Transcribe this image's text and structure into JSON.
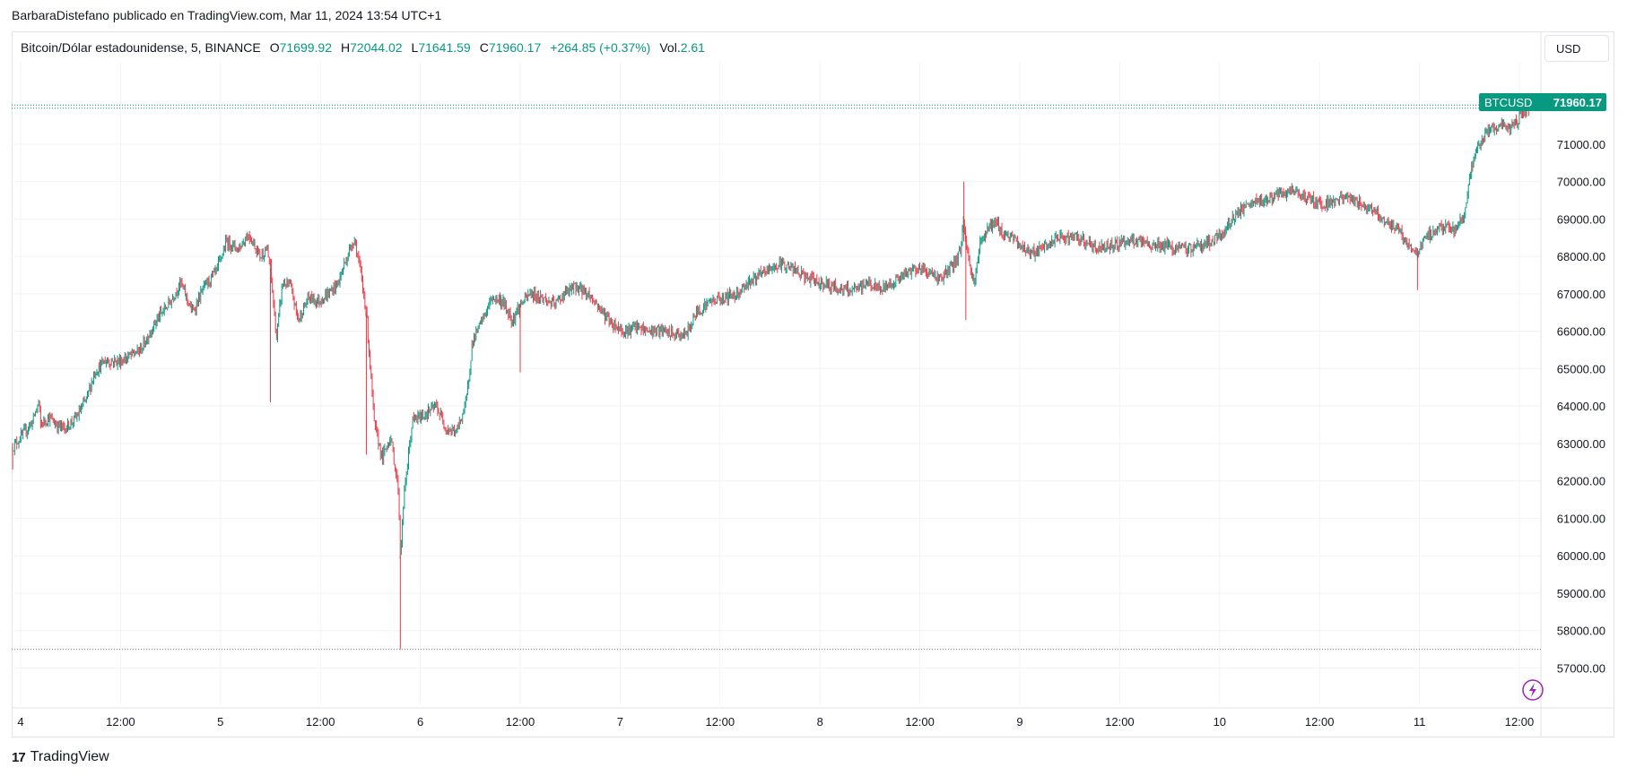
{
  "header": {
    "attribution": "BarbaraDistefano publicado en TradingView.com, Mar 11, 2024 13:54 UTC+1"
  },
  "legend": {
    "symbol": "Bitcoin/Dólar estadounidense, 5, BINANCE",
    "open_label": "O",
    "open": "71699.92",
    "high_label": "H",
    "high": "72044.02",
    "low_label": "L",
    "low": "71641.59",
    "close_label": "C",
    "close": "71960.17",
    "change": "+264.85 (+0.37%)",
    "vol_label": "Vol.",
    "vol": "2.61"
  },
  "currency_button": {
    "label": "USD"
  },
  "price_tag": {
    "ticker": "BTCUSD",
    "price": "71960.17"
  },
  "footer": {
    "brand": "TradingView",
    "logo": "TV-logo-icon"
  },
  "colors": {
    "up": "#089981",
    "down": "#f23645",
    "grid": "#f0f3fa",
    "text": "#131722"
  },
  "chart_data": {
    "type": "line",
    "title": "",
    "xlabel": "",
    "ylabel": "",
    "ylim": [
      56000,
      72300
    ],
    "xlim": [
      0,
      7.66
    ],
    "grid": true,
    "y_ticks": [
      "57000.00",
      "58000.00",
      "59000.00",
      "60000.00",
      "61000.00",
      "62000.00",
      "63000.00",
      "64000.00",
      "65000.00",
      "66000.00",
      "67000.00",
      "68000.00",
      "69000.00",
      "70000.00",
      "71000.00"
    ],
    "x_ticks": [
      {
        "pos": 0,
        "label": "4"
      },
      {
        "pos": 0.5,
        "label": "12:00"
      },
      {
        "pos": 1,
        "label": "5"
      },
      {
        "pos": 1.5,
        "label": "12:00"
      },
      {
        "pos": 2,
        "label": "6"
      },
      {
        "pos": 2.5,
        "label": "12:00"
      },
      {
        "pos": 3,
        "label": "7"
      },
      {
        "pos": 3.5,
        "label": "12:00"
      },
      {
        "pos": 4,
        "label": "8"
      },
      {
        "pos": 4.5,
        "label": "12:00"
      },
      {
        "pos": 5,
        "label": "9"
      },
      {
        "pos": 5.5,
        "label": "12:00"
      },
      {
        "pos": 6,
        "label": "10"
      },
      {
        "pos": 6.5,
        "label": "12:00"
      },
      {
        "pos": 7,
        "label": "11"
      },
      {
        "pos": 7.5,
        "label": "12:00"
      }
    ],
    "series": [
      {
        "values": [
          [
            -0.04,
            62900
          ],
          [
            0.02,
            63300
          ],
          [
            0.06,
            63600
          ],
          [
            0.09,
            64100
          ],
          [
            0.1,
            63500
          ],
          [
            0.14,
            63700
          ],
          [
            0.18,
            63500
          ],
          [
            0.22,
            63400
          ],
          [
            0.28,
            63700
          ],
          [
            0.33,
            64200
          ],
          [
            0.37,
            64900
          ],
          [
            0.42,
            65200
          ],
          [
            0.5,
            65200
          ],
          [
            0.6,
            65500
          ],
          [
            0.68,
            66300
          ],
          [
            0.75,
            66800
          ],
          [
            0.8,
            67300
          ],
          [
            0.86,
            66500
          ],
          [
            0.92,
            67200
          ],
          [
            0.98,
            67600
          ],
          [
            1.03,
            68400
          ],
          [
            1.09,
            68200
          ],
          [
            1.14,
            68600
          ],
          [
            1.2,
            68000
          ],
          [
            1.23,
            68200
          ],
          [
            1.25,
            67700
          ],
          [
            1.28,
            65800
          ],
          [
            1.31,
            67300
          ],
          [
            1.35,
            67200
          ],
          [
            1.39,
            66300
          ],
          [
            1.44,
            66900
          ],
          [
            1.49,
            66800
          ],
          [
            1.54,
            67000
          ],
          [
            1.59,
            67300
          ],
          [
            1.62,
            67800
          ],
          [
            1.67,
            68500
          ],
          [
            1.7,
            67600
          ],
          [
            1.73,
            66500
          ],
          [
            1.77,
            63500
          ],
          [
            1.81,
            62600
          ],
          [
            1.85,
            63200
          ],
          [
            1.89,
            61800
          ],
          [
            1.9,
            60000
          ],
          [
            1.92,
            61700
          ],
          [
            1.96,
            63600
          ],
          [
            2.03,
            63800
          ],
          [
            2.08,
            64000
          ],
          [
            2.13,
            63400
          ],
          [
            2.18,
            63300
          ],
          [
            2.23,
            64100
          ],
          [
            2.26,
            65700
          ],
          [
            2.31,
            66300
          ],
          [
            2.36,
            66900
          ],
          [
            2.41,
            66800
          ],
          [
            2.46,
            66300
          ],
          [
            2.5,
            66700
          ],
          [
            2.55,
            67000
          ],
          [
            2.61,
            66900
          ],
          [
            2.67,
            66700
          ],
          [
            2.72,
            67000
          ],
          [
            2.78,
            67200
          ],
          [
            2.84,
            67000
          ],
          [
            2.9,
            66600
          ],
          [
            2.96,
            66200
          ],
          [
            3.02,
            66000
          ],
          [
            3.08,
            66100
          ],
          [
            3.14,
            66000
          ],
          [
            3.21,
            66000
          ],
          [
            3.28,
            65900
          ],
          [
            3.33,
            65900
          ],
          [
            3.38,
            66500
          ],
          [
            3.45,
            66800
          ],
          [
            3.52,
            66900
          ],
          [
            3.58,
            67000
          ],
          [
            3.64,
            67300
          ],
          [
            3.7,
            67500
          ],
          [
            3.76,
            67700
          ],
          [
            3.82,
            67800
          ],
          [
            3.88,
            67600
          ],
          [
            3.94,
            67400
          ],
          [
            4.0,
            67300
          ],
          [
            4.06,
            67200
          ],
          [
            4.12,
            67100
          ],
          [
            4.18,
            67100
          ],
          [
            4.24,
            67300
          ],
          [
            4.3,
            67100
          ],
          [
            4.36,
            67300
          ],
          [
            4.42,
            67500
          ],
          [
            4.48,
            67700
          ],
          [
            4.54,
            67600
          ],
          [
            4.6,
            67400
          ],
          [
            4.66,
            67700
          ],
          [
            4.7,
            68100
          ],
          [
            4.72,
            69000
          ],
          [
            4.73,
            68400
          ],
          [
            4.75,
            67700
          ],
          [
            4.77,
            67300
          ],
          [
            4.8,
            68300
          ],
          [
            4.84,
            68800
          ],
          [
            4.88,
            68900
          ],
          [
            4.92,
            68600
          ],
          [
            4.96,
            68500
          ],
          [
            5.02,
            68200
          ],
          [
            5.08,
            68100
          ],
          [
            5.14,
            68300
          ],
          [
            5.2,
            68500
          ],
          [
            5.27,
            68500
          ],
          [
            5.33,
            68400
          ],
          [
            5.38,
            68200
          ],
          [
            5.45,
            68300
          ],
          [
            5.52,
            68400
          ],
          [
            5.58,
            68400
          ],
          [
            5.65,
            68300
          ],
          [
            5.72,
            68300
          ],
          [
            5.78,
            68200
          ],
          [
            5.84,
            68200
          ],
          [
            5.9,
            68300
          ],
          [
            5.96,
            68400
          ],
          [
            6.02,
            68600
          ],
          [
            6.06,
            69000
          ],
          [
            6.1,
            69200
          ],
          [
            6.16,
            69400
          ],
          [
            6.22,
            69500
          ],
          [
            6.28,
            69600
          ],
          [
            6.34,
            69700
          ],
          [
            6.4,
            69700
          ],
          [
            6.46,
            69500
          ],
          [
            6.52,
            69400
          ],
          [
            6.58,
            69500
          ],
          [
            6.64,
            69600
          ],
          [
            6.7,
            69400
          ],
          [
            6.76,
            69300
          ],
          [
            6.82,
            69000
          ],
          [
            6.86,
            68800
          ],
          [
            6.9,
            68700
          ],
          [
            6.94,
            68300
          ],
          [
            6.99,
            68100
          ],
          [
            7.03,
            68500
          ],
          [
            7.08,
            68700
          ],
          [
            7.13,
            68800
          ],
          [
            7.18,
            68700
          ],
          [
            7.22,
            69100
          ],
          [
            7.26,
            70300
          ],
          [
            7.3,
            71000
          ],
          [
            7.35,
            71400
          ],
          [
            7.4,
            71500
          ],
          [
            7.45,
            71400
          ],
          [
            7.5,
            71700
          ],
          [
            7.53,
            71900
          ],
          [
            7.55,
            71960.17
          ]
        ]
      }
    ],
    "hlines": [
      57500,
      71960.17,
      72044.02
    ]
  }
}
